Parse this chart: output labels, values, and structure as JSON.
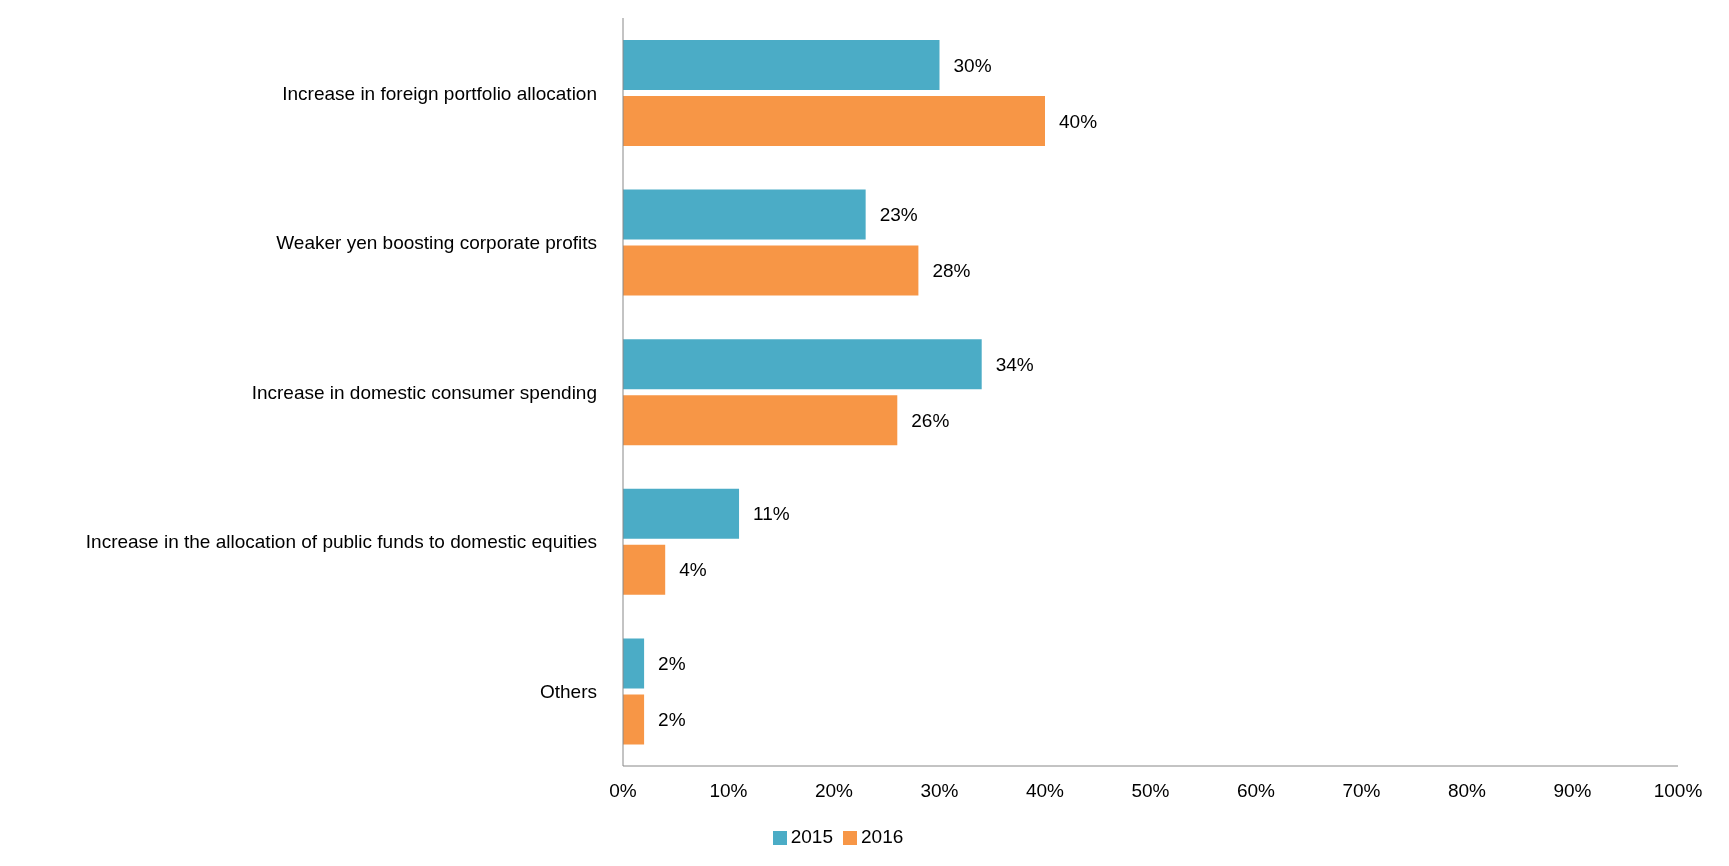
{
  "chart_data": {
    "type": "bar",
    "orientation": "horizontal",
    "categories": [
      "Increase in foreign portfolio allocation",
      "Weaker yen boosting corporate profits",
      "Increase in domestic consumer spending",
      "Increase in the allocation of public funds to domestic equities",
      "Others"
    ],
    "series": [
      {
        "name": "2015",
        "color": "#4bacc6",
        "values": [
          30,
          23,
          34,
          11,
          2
        ],
        "value_labels": [
          "30%",
          "23%",
          "34%",
          "11%",
          "2%"
        ]
      },
      {
        "name": "2016",
        "color": "#f79646",
        "values": [
          40,
          28,
          26,
          4,
          2
        ],
        "value_labels": [
          "40%",
          "28%",
          "26%",
          "4%",
          "2%"
        ]
      }
    ],
    "xlim": [
      0,
      100
    ],
    "xticks": [
      {
        "value": 0,
        "label": "0%"
      },
      {
        "value": 10,
        "label": "10%"
      },
      {
        "value": 20,
        "label": "20%"
      },
      {
        "value": 30,
        "label": "30%"
      },
      {
        "value": 40,
        "label": "40%"
      },
      {
        "value": 50,
        "label": "50%"
      },
      {
        "value": 60,
        "label": "60%"
      },
      {
        "value": 70,
        "label": "70%"
      },
      {
        "value": 80,
        "label": "80%"
      },
      {
        "value": 90,
        "label": "90%"
      },
      {
        "value": 100,
        "label": "100%"
      }
    ],
    "grid": false,
    "legend": "bottom"
  }
}
